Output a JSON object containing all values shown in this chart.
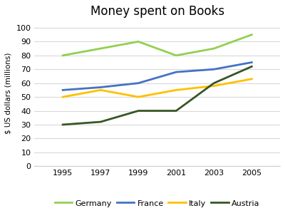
{
  "title": "Money spent on Books",
  "ylabel": "$ US dollars (millions)",
  "years": [
    1995,
    1997,
    1999,
    2001,
    2003,
    2005
  ],
  "series": {
    "Germany": {
      "values": [
        80,
        85,
        90,
        80,
        85,
        95
      ],
      "color": "#92d050"
    },
    "France": {
      "values": [
        55,
        57,
        60,
        68,
        70,
        75
      ],
      "color": "#4472c4"
    },
    "Italy": {
      "values": [
        50,
        55,
        50,
        55,
        58,
        63
      ],
      "color": "#ffc000"
    },
    "Austria": {
      "values": [
        30,
        32,
        40,
        40,
        60,
        72
      ],
      "color": "#375623"
    }
  },
  "ylim": [
    0,
    105
  ],
  "yticks": [
    0,
    10,
    20,
    30,
    40,
    50,
    60,
    70,
    80,
    90,
    100
  ],
  "background_color": "#ffffff",
  "grid_color": "#d9d9d9",
  "title_fontsize": 12,
  "label_fontsize": 7.5,
  "tick_fontsize": 8,
  "legend_fontsize": 8
}
